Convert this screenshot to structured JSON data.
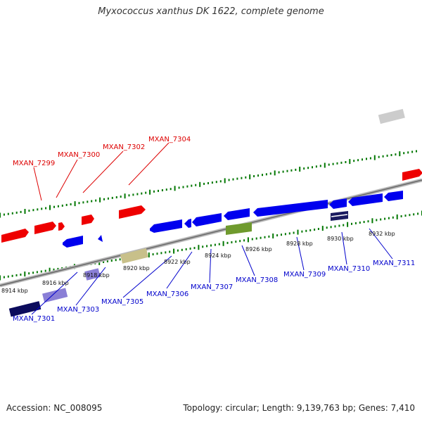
{
  "title": "Myxococcus xanthus DK 1622, complete genome",
  "colors": {
    "forward_gene": "#ff0000",
    "reverse_gene": "#0000ff",
    "gc_tick": "#007700",
    "backbone": "#888888",
    "top_label": "#dd0000",
    "bottom_label": "#0000cc"
  },
  "kbp_labels": [
    "8914 kbp",
    "8916 kbp",
    "8918 kbp",
    "8920 kbp",
    "8922 kbp",
    "8924 kbp",
    "8926 kbp",
    "8928 kbp",
    "8930 kbp",
    "8932 kbp"
  ],
  "top_gene_labels": [
    "MXAN_7299",
    "MXAN_7300",
    "MXAN_7302",
    "MXAN_7304"
  ],
  "bottom_gene_labels": [
    "MXAN_7301",
    "MXAN_7303",
    "MXAN_7305",
    "MXAN_7306",
    "MXAN_7307",
    "MXAN_7308",
    "MXAN_7309",
    "MXAN_7310",
    "MXAN_7311"
  ],
  "footer": {
    "accession": "Accession: NC_008095",
    "stats": "Topology: circular; Length: 9,139,763 bp; Genes: 7,410"
  }
}
